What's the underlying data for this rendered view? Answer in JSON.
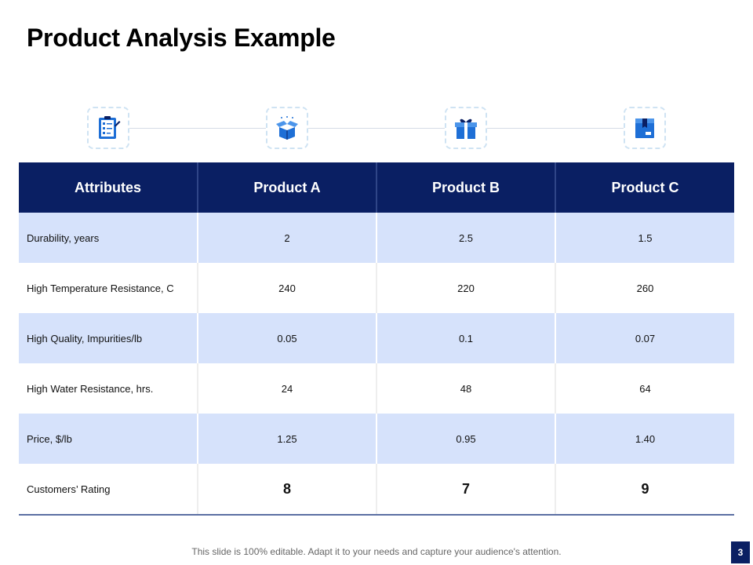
{
  "slide": {
    "title": "Product Analysis Example",
    "footer": "This slide is 100% editable. Adapt it to your needs and capture your audience's attention.",
    "page_number": "3"
  },
  "icons": [
    "checklist-icon",
    "open-box-icon",
    "gift-icon",
    "package-icon"
  ],
  "colors": {
    "header": "#0a1f63",
    "stripe": "#d6e2fb",
    "icon": "#1e6fd6"
  },
  "table": {
    "headers": [
      "Attributes",
      "Product A",
      "Product B",
      "Product C"
    ],
    "rows": [
      {
        "attribute": "Durability, years",
        "values": [
          "2",
          "2.5",
          "1.5"
        ]
      },
      {
        "attribute": "High Temperature Resistance, C",
        "values": [
          "240",
          "220",
          "260"
        ]
      },
      {
        "attribute": "High Quality, Impurities/lb",
        "values": [
          "0.05",
          "0.1",
          "0.07"
        ]
      },
      {
        "attribute": "High Water Resistance, hrs.",
        "values": [
          "24",
          "48",
          "64"
        ]
      },
      {
        "attribute": "Price, $/lb",
        "values": [
          "1.25",
          "0.95",
          "1.40"
        ]
      },
      {
        "attribute": "Customers’ Rating",
        "values": [
          "8",
          "7",
          "9"
        ]
      }
    ]
  }
}
